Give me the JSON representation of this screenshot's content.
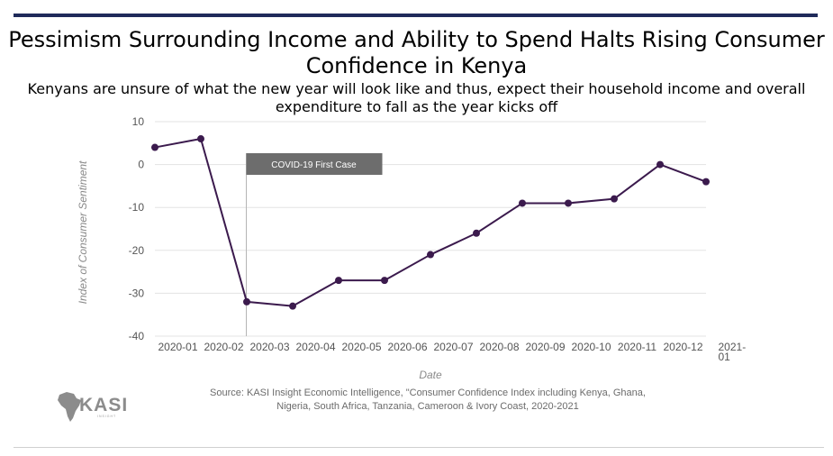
{
  "header": {
    "title": "Pessimism Surrounding Income and Ability to Spend Halts Rising Consumer Confidence in Kenya",
    "subtitle": "Kenyans are unsure of what the new year will look like and thus, expect their household income and overall expenditure to fall as the year kicks off"
  },
  "chart_data": {
    "type": "line",
    "title": "",
    "xlabel": "Date",
    "ylabel": "Index of Consumer Sentiment",
    "x_ticks": [
      "2020-01",
      "2020-02",
      "2020-03",
      "2020-04",
      "2020-05",
      "2020-06",
      "2020-07",
      "2020-08",
      "2020-09",
      "2020-10",
      "2020-11",
      "2020-12",
      "2021-01"
    ],
    "y_ticks": [
      10,
      0,
      -10,
      -20,
      -30,
      -40
    ],
    "ylim": [
      -40,
      10
    ],
    "grid": true,
    "series": [
      {
        "color": "#3b1a4d",
        "points": [
          {
            "x": "2019-12",
            "y": 4
          },
          {
            "x": "2020-01",
            "y": 6
          },
          {
            "x": "2020-02",
            "y": -32
          },
          {
            "x": "2020-03",
            "y": -33
          },
          {
            "x": "2020-04",
            "y": -27
          },
          {
            "x": "2020-05",
            "y": -27
          },
          {
            "x": "2020-06",
            "y": -21
          },
          {
            "x": "2020-07",
            "y": -16
          },
          {
            "x": "2020-08",
            "y": -9
          },
          {
            "x": "2020-09",
            "y": -9
          },
          {
            "x": "2020-10",
            "y": -8
          },
          {
            "x": "2020-11",
            "y": 0
          },
          {
            "x": "2020-12",
            "y": -4
          }
        ]
      }
    ],
    "annotations": [
      {
        "x": "2020-02",
        "label": "COVID-19 First Case",
        "color": "#6d6d6d"
      }
    ]
  },
  "footer": {
    "source_line1": "Source: KASI Insight Economic Intelligence, \"Consumer Confidence Index including Kenya, Ghana,",
    "source_line2": "Nigeria, South Africa, Tanzania, Cameroon & Ivory Coast, 2020-2021",
    "logo_text": "KASI",
    "logo_subtext": "INSIGHT"
  }
}
